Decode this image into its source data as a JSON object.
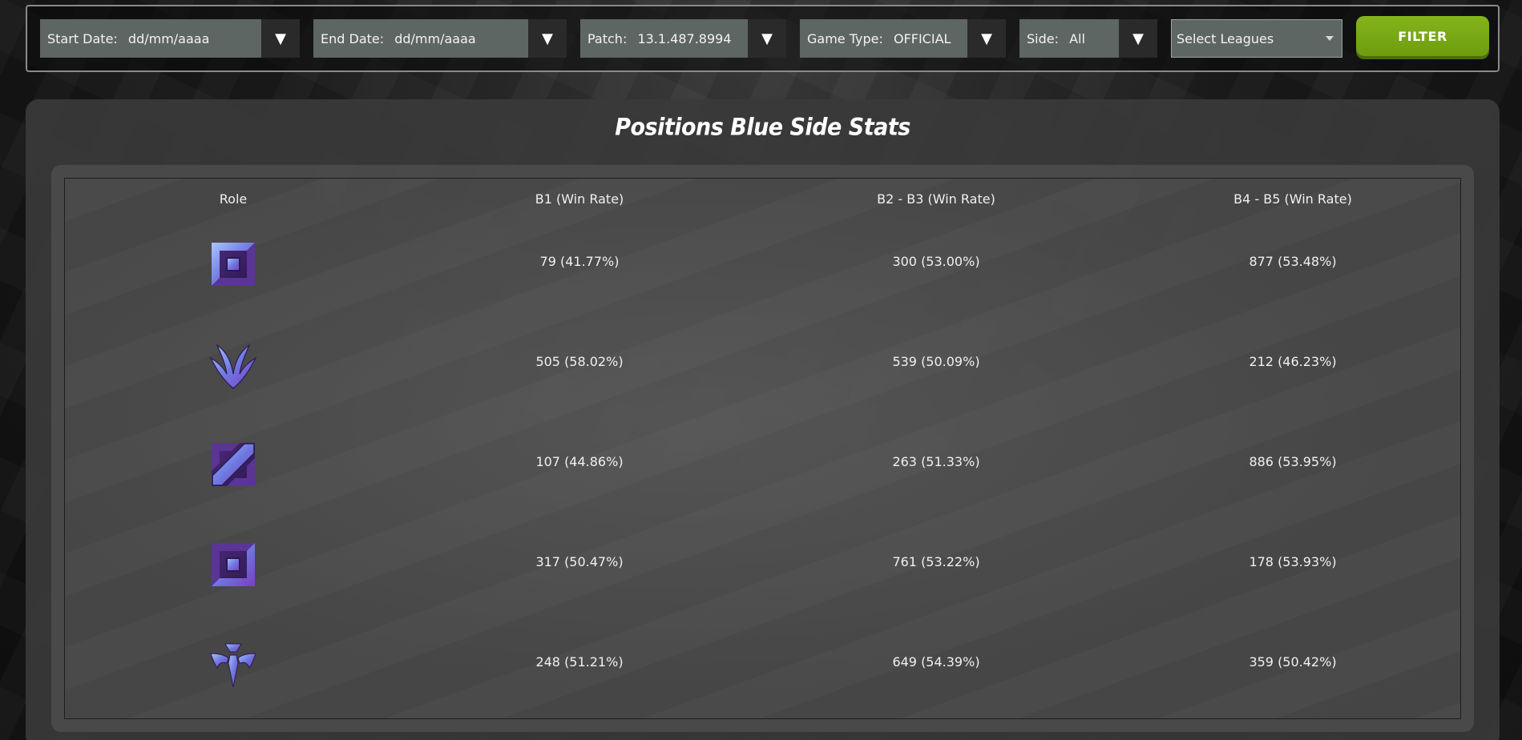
{
  "filters": {
    "start_date": {
      "label": "Start Date:",
      "value": "dd/mm/aaaa"
    },
    "end_date": {
      "label": "End Date:",
      "value": "dd/mm/aaaa"
    },
    "patch": {
      "label": "Patch:",
      "value": "13.1.487.8994"
    },
    "game_type": {
      "label": "Game Type:",
      "value": "OFFICIAL"
    },
    "side": {
      "label": "Side:",
      "value": "All"
    },
    "leagues_placeholder": "Select Leagues",
    "filter_button": "FILTER"
  },
  "panel": {
    "title": "Positions Blue Side Stats",
    "columns": [
      "Role",
      "B1 (Win Rate)",
      "B2 - B3 (Win Rate)",
      "B4 - B5 (Win Rate)"
    ],
    "rows": [
      {
        "role_icon": "top-lane-icon",
        "b1": "79 (41.77%)",
        "b2_b3": "300 (53.00%)",
        "b4_b5": "877 (53.48%)"
      },
      {
        "role_icon": "jungle-icon",
        "b1": "505 (58.02%)",
        "b2_b3": "539 (50.09%)",
        "b4_b5": "212 (46.23%)"
      },
      {
        "role_icon": "mid-lane-icon",
        "b1": "107 (44.86%)",
        "b2_b3": "263 (51.33%)",
        "b4_b5": "886 (53.95%)"
      },
      {
        "role_icon": "bot-lane-icon",
        "b1": "317 (50.47%)",
        "b2_b3": "761 (53.22%)",
        "b4_b5": "178 (53.93%)"
      },
      {
        "role_icon": "support-icon",
        "b1": "248 (51.21%)",
        "b2_b3": "649 (54.39%)",
        "b4_b5": "359 (50.42%)"
      }
    ]
  },
  "colors": {
    "accent_button": "#7cad16",
    "filter_bg": "#5e6663",
    "icon_gradient_start": "#7fa8ff",
    "icon_gradient_end": "#7a3dc4"
  }
}
